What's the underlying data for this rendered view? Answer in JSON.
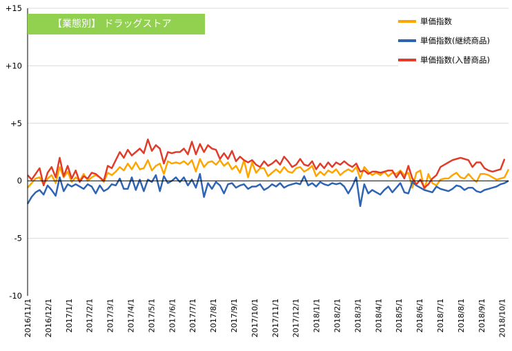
{
  "chart_data": {
    "type": "line",
    "title": "【業態別】 ドラッグストア",
    "ylim": [
      -10,
      15
    ],
    "y_ticks": [
      {
        "value": 15,
        "label": "+15"
      },
      {
        "value": 10,
        "label": "+10"
      },
      {
        "value": 5,
        "label": "+5"
      },
      {
        "value": 0,
        "label": "0"
      },
      {
        "value": -5,
        "label": "-5"
      },
      {
        "value": -10,
        "label": "-10"
      }
    ],
    "x_tick_labels": [
      "2016/11/1",
      "2016/12/1",
      "2017/1/1",
      "2017/2/1",
      "2017/3/1",
      "2017/4/1",
      "2017/5/1",
      "2017/6/1",
      "2017/7/1",
      "2017/8/1",
      "2017/9/1",
      "2017/10/1",
      "2017/11/1",
      "2017/12/1",
      "2018/1/1",
      "2018/2/1",
      "2018/3/1",
      "2018/4/1",
      "2018/5/1",
      "2018/6/1",
      "2018/7/1",
      "2018/8/1",
      "2018/9/1",
      "2018/10/1"
    ],
    "grid": "horizontal",
    "legend_position": "top-right",
    "series": [
      {
        "name": "単価指数",
        "color": "#ffa500",
        "values": [
          -0.6,
          -0.2,
          0.2,
          0.3,
          -0.3,
          0.2,
          0.5,
          -0.2,
          1.2,
          0.3,
          0.8,
          -0.1,
          0.3,
          0.0,
          0.6,
          0.0,
          0.3,
          0.5,
          0.3,
          -0.1,
          0.7,
          0.5,
          0.8,
          1.2,
          0.9,
          1.5,
          1.0,
          1.6,
          1.0,
          1.1,
          1.8,
          0.9,
          1.3,
          1.5,
          0.6,
          1.7,
          1.5,
          1.6,
          1.5,
          1.7,
          1.4,
          1.8,
          0.8,
          1.9,
          1.2,
          1.6,
          1.7,
          1.4,
          1.8,
          1.3,
          1.6,
          1.0,
          1.3,
          0.7,
          1.8,
          0.3,
          1.6,
          0.7,
          1.1,
          1.1,
          0.4,
          0.7,
          1.0,
          0.7,
          1.2,
          0.8,
          0.7,
          1.1,
          1.2,
          0.8,
          1.0,
          1.3,
          0.4,
          0.8,
          0.5,
          0.9,
          0.7,
          1.0,
          0.5,
          0.8,
          1.0,
          0.8,
          1.2,
          0.2,
          1.2,
          0.8,
          0.5,
          0.7,
          0.5,
          0.8,
          0.4,
          0.7,
          0.6,
          0.9,
          0.5,
          0.7,
          -0.6,
          0.7,
          0.9,
          -0.8,
          0.6,
          -0.2,
          -0.4,
          0.1,
          0.2,
          0.2,
          0.5,
          0.7,
          0.3,
          0.2,
          0.6,
          0.2,
          -0.1,
          0.6,
          0.6,
          0.5,
          0.3,
          0.1,
          0.2,
          0.3,
          1.0
        ]
      },
      {
        "name": "単価指数(継続商品)",
        "color": "#2e64b4",
        "values": [
          -2.0,
          -1.4,
          -1.0,
          -0.8,
          -1.2,
          -0.4,
          -0.8,
          -1.3,
          0.3,
          -0.9,
          -0.3,
          -0.5,
          -0.3,
          -0.5,
          -0.7,
          -0.3,
          -0.5,
          -1.1,
          -0.4,
          -0.9,
          -0.7,
          -0.3,
          -0.4,
          0.2,
          -0.7,
          -0.7,
          0.3,
          -0.8,
          0.1,
          -0.9,
          0.1,
          -0.1,
          0.5,
          -0.9,
          0.4,
          -0.2,
          0.0,
          0.3,
          -0.1,
          0.3,
          -0.4,
          0.1,
          -0.6,
          0.6,
          -1.4,
          -0.2,
          -0.7,
          -0.1,
          -0.4,
          -1.1,
          -0.3,
          -0.2,
          -0.6,
          -0.4,
          -0.3,
          -0.7,
          -0.5,
          -0.5,
          -0.3,
          -0.8,
          -0.6,
          -0.3,
          -0.5,
          -0.2,
          -0.6,
          -0.4,
          -0.3,
          -0.2,
          -0.3,
          0.4,
          -0.4,
          -0.2,
          -0.5,
          -0.1,
          -0.3,
          -0.4,
          -0.2,
          -0.3,
          -0.2,
          -0.5,
          -1.1,
          -0.5,
          0.3,
          -2.2,
          -0.3,
          -1.1,
          -0.8,
          -1.0,
          -1.2,
          -0.8,
          -0.5,
          -1.0,
          -0.6,
          -0.2,
          -1.0,
          -1.1,
          -0.1,
          -0.4,
          -0.6,
          -0.8,
          -0.9,
          -1.0,
          -0.5,
          -0.7,
          -0.8,
          -0.9,
          -0.7,
          -0.4,
          -0.5,
          -0.8,
          -0.6,
          -0.6,
          -0.9,
          -1.0,
          -0.8,
          -0.7,
          -0.6,
          -0.5,
          -0.3,
          -0.2,
          0.0
        ]
      },
      {
        "name": "単価指数(入替商品)",
        "color": "#e03c2a",
        "values": [
          0.5,
          0.1,
          0.6,
          1.1,
          -0.4,
          0.7,
          1.2,
          0.3,
          2.0,
          0.4,
          1.3,
          0.2,
          0.9,
          -0.1,
          0.4,
          0.2,
          0.7,
          0.6,
          0.3,
          0.0,
          1.3,
          1.1,
          1.8,
          2.5,
          2.0,
          2.7,
          2.2,
          2.5,
          2.8,
          2.4,
          3.6,
          2.6,
          3.1,
          2.8,
          1.5,
          2.5,
          2.4,
          2.5,
          2.5,
          2.8,
          2.3,
          3.4,
          2.3,
          3.2,
          2.5,
          3.1,
          2.8,
          2.7,
          1.9,
          2.4,
          1.9,
          2.6,
          1.7,
          2.1,
          1.8,
          1.6,
          1.8,
          1.4,
          1.2,
          1.7,
          1.3,
          1.5,
          1.8,
          1.4,
          2.1,
          1.7,
          1.2,
          1.4,
          1.9,
          1.4,
          1.3,
          1.7,
          1.0,
          1.5,
          1.1,
          1.6,
          1.2,
          1.6,
          1.4,
          1.7,
          1.4,
          1.2,
          1.5,
          0.8,
          0.9,
          0.6,
          0.8,
          0.8,
          0.7,
          0.8,
          0.9,
          0.9,
          0.3,
          0.8,
          0.2,
          1.3,
          0.2,
          -0.3,
          0.1,
          -0.6,
          -0.3,
          0.2,
          0.5,
          1.2,
          1.4,
          1.6,
          1.8,
          1.9,
          2.0,
          1.9,
          1.8,
          1.2,
          1.6,
          1.6,
          1.1,
          0.9,
          0.8,
          0.9,
          1.0,
          1.9
        ]
      }
    ]
  }
}
